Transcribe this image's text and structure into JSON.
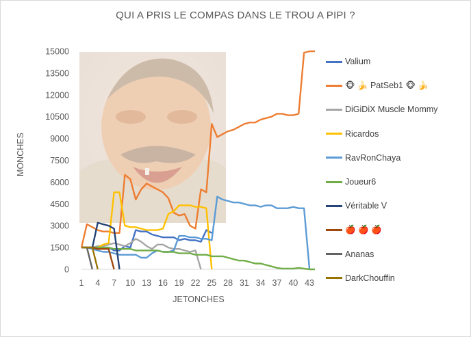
{
  "chart_data": {
    "type": "line",
    "title": "QUI A PRIS LE COMPAS DANS LE TROU A PIPI ?",
    "xlabel": "JETONCHES",
    "ylabel": "MONCHES",
    "xlim": [
      1,
      44
    ],
    "ylim": [
      0,
      15000
    ],
    "x_ticks": [
      "1",
      "4",
      "7",
      "10",
      "13",
      "16",
      "19",
      "22",
      "25",
      "28",
      "31",
      "34",
      "37",
      "40",
      "43"
    ],
    "y_ticks": [
      "0",
      "1500",
      "3000",
      "4500",
      "6000",
      "7500",
      "9000",
      "10500",
      "12000",
      "13500",
      "15000"
    ],
    "legend_position": "right",
    "grid": false,
    "series": [
      {
        "name": "Valium",
        "color": "#4472c4",
        "x": [
          1,
          2,
          3,
          4,
          5,
          6,
          7,
          8,
          9,
          10,
          11,
          12,
          13,
          14,
          15,
          16,
          17,
          18,
          19,
          20,
          21,
          22,
          23,
          24,
          25
        ],
        "y": [
          1500,
          1500,
          1500,
          1500,
          1500,
          1500,
          1300,
          1300,
          1600,
          1500,
          2700,
          2600,
          2600,
          2400,
          2300,
          2200,
          2200,
          2200,
          2000,
          2100,
          2000,
          2000,
          1900,
          2700,
          2500
        ]
      },
      {
        "name": "🐵 🍌 PatSeb1 🐵 🍌",
        "color": "#ed7d31",
        "x": [
          1,
          2,
          3,
          4,
          5,
          6,
          7,
          8,
          9,
          10,
          11,
          12,
          13,
          14,
          15,
          16,
          17,
          18,
          19,
          20,
          21,
          22,
          23,
          24,
          25,
          26,
          27,
          28,
          29,
          30,
          31,
          32,
          33,
          34,
          35,
          36,
          37,
          38,
          39,
          40,
          41,
          42,
          43,
          44
        ],
        "y": [
          1500,
          3100,
          2900,
          2700,
          2600,
          2600,
          2500,
          2500,
          6500,
          6200,
          4800,
          5500,
          5900,
          5700,
          5500,
          5300,
          4900,
          3900,
          3700,
          3800,
          3000,
          2800,
          5500,
          5300,
          10000,
          9100,
          9300,
          9500,
          9600,
          9800,
          10000,
          10100,
          10100,
          10300,
          10400,
          10500,
          10700,
          10700,
          10600,
          10600,
          10700,
          14900,
          15000,
          15000
        ]
      },
      {
        "name": "DiGiDiX Muscle Mommy",
        "color": "#a5a5a5",
        "x": [
          1,
          2,
          3,
          4,
          5,
          6,
          7,
          8,
          9,
          10,
          11,
          12,
          13,
          14,
          15,
          16,
          17,
          18,
          19,
          20,
          21,
          22,
          23
        ],
        "y": [
          1500,
          1500,
          1500,
          1600,
          1600,
          1700,
          1800,
          1700,
          1600,
          1800,
          2100,
          1900,
          1600,
          1400,
          1700,
          1700,
          1500,
          1400,
          1400,
          1300,
          1200,
          1300,
          0
        ]
      },
      {
        "name": "Ricardos",
        "color": "#ffc000",
        "x": [
          1,
          2,
          3,
          4,
          5,
          6,
          7,
          8,
          9,
          10,
          11,
          12,
          13,
          14,
          15,
          16,
          17,
          18,
          19,
          20,
          21,
          22,
          23,
          24,
          25
        ],
        "y": [
          1500,
          1500,
          1500,
          1500,
          1700,
          1800,
          5300,
          5300,
          3000,
          2900,
          2900,
          2800,
          2700,
          2700,
          2700,
          2800,
          3800,
          4000,
          4400,
          4400,
          4400,
          4300,
          4300,
          4200,
          0
        ]
      },
      {
        "name": "RavRonChaya",
        "color": "#5b9bd5",
        "x": [
          1,
          2,
          3,
          4,
          5,
          6,
          7,
          8,
          9,
          10,
          11,
          12,
          13,
          14,
          15,
          16,
          17,
          18,
          19,
          20,
          21,
          22,
          23,
          24,
          25,
          26,
          27,
          28,
          29,
          30,
          31,
          32,
          33,
          34,
          35,
          36,
          37,
          38,
          39,
          40,
          41,
          42,
          43
        ],
        "y": [
          1500,
          1500,
          1400,
          1300,
          1200,
          1200,
          1100,
          1000,
          1000,
          1000,
          1000,
          800,
          800,
          1100,
          1300,
          1200,
          1200,
          1300,
          2300,
          2300,
          2200,
          2200,
          2100,
          2100,
          2000,
          5000,
          4800,
          4700,
          4600,
          4600,
          4500,
          4400,
          4400,
          4300,
          4400,
          4400,
          4200,
          4200,
          4200,
          4300,
          4200,
          4200,
          0
        ]
      },
      {
        "name": "Joueur6",
        "color": "#70ad47",
        "x": [
          1,
          2,
          3,
          4,
          5,
          6,
          7,
          8,
          9,
          10,
          11,
          12,
          13,
          14,
          15,
          16,
          17,
          18,
          19,
          20,
          21,
          22,
          23,
          24,
          25,
          26,
          27,
          28,
          29,
          30,
          31,
          32,
          33,
          34,
          35,
          36,
          37,
          38,
          39,
          40,
          41,
          42,
          43,
          44
        ],
        "y": [
          1500,
          1500,
          1500,
          1500,
          1500,
          1500,
          1400,
          1400,
          1400,
          1400,
          1300,
          1300,
          1300,
          1300,
          1300,
          1200,
          1200,
          1200,
          1100,
          1100,
          1100,
          1000,
          1000,
          1000,
          900,
          900,
          900,
          800,
          700,
          600,
          600,
          500,
          400,
          400,
          300,
          200,
          100,
          50,
          50,
          50,
          100,
          50,
          0,
          0
        ]
      },
      {
        "name": "Véritable V",
        "color": "#264478",
        "x": [
          1,
          2,
          3,
          4,
          5,
          6,
          7,
          8
        ],
        "y": [
          1500,
          1500,
          1500,
          3200,
          3100,
          3000,
          2800,
          0
        ]
      },
      {
        "name": "🍎 🍎 🍎",
        "color": "#9e480e",
        "x": [
          1,
          2,
          3,
          4,
          5,
          6,
          7
        ],
        "y": [
          1500,
          1500,
          1500,
          1400,
          1400,
          1400,
          0
        ]
      },
      {
        "name": "Ananas",
        "color": "#636363",
        "x": [
          1,
          2,
          3
        ],
        "y": [
          1500,
          1500,
          0
        ]
      },
      {
        "name": "DarkChouffin",
        "color": "#997300",
        "x": [
          1,
          2,
          3,
          4
        ],
        "y": [
          1500,
          1500,
          1500,
          0
        ]
      }
    ]
  }
}
